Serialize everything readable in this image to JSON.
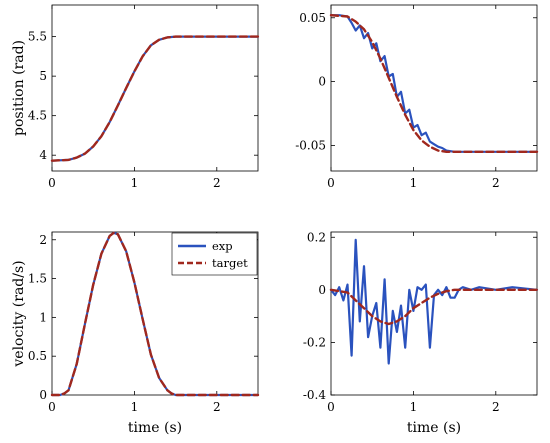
{
  "colors": {
    "exp": "#2a52be",
    "target": "#a0281e",
    "axis": "#000000",
    "background": "#ffffff"
  },
  "legend": {
    "placement": "top-right",
    "panel": 2
  },
  "chart_data": [
    {
      "type": "line",
      "panel": "top-left",
      "xlabel": "",
      "ylabel": "position (rad)",
      "xlim": [
        0,
        2.5
      ],
      "ylim": [
        3.8,
        5.9
      ],
      "xticks": [
        "0",
        "1",
        "2"
      ],
      "yticks": [
        "4",
        "4.5",
        "5",
        "5.5"
      ],
      "grid": false,
      "series": [
        {
          "name": "exp",
          "style": "solid",
          "x": [
            0,
            0.2,
            0.3,
            0.4,
            0.5,
            0.6,
            0.7,
            0.8,
            0.9,
            1.0,
            1.1,
            1.2,
            1.3,
            1.4,
            1.5,
            1.7,
            2.0,
            2.5
          ],
          "y": [
            3.93,
            3.94,
            3.97,
            4.02,
            4.11,
            4.24,
            4.42,
            4.63,
            4.85,
            5.06,
            5.25,
            5.39,
            5.46,
            5.49,
            5.5,
            5.5,
            5.5,
            5.5
          ]
        },
        {
          "name": "target",
          "style": "dashed",
          "x": [
            0,
            0.2,
            0.3,
            0.4,
            0.5,
            0.6,
            0.7,
            0.8,
            0.9,
            1.0,
            1.1,
            1.2,
            1.3,
            1.4,
            1.5,
            1.7,
            2.0,
            2.5
          ],
          "y": [
            3.93,
            3.94,
            3.97,
            4.02,
            4.11,
            4.24,
            4.42,
            4.63,
            4.85,
            5.06,
            5.25,
            5.39,
            5.46,
            5.49,
            5.5,
            5.5,
            5.5,
            5.5
          ]
        }
      ]
    },
    {
      "type": "line",
      "panel": "top-right",
      "xlabel": "",
      "ylabel": "",
      "xlim": [
        0,
        2.5
      ],
      "ylim": [
        -0.07,
        0.06
      ],
      "xticks": [
        "0",
        "1",
        "2"
      ],
      "yticks": [
        "-0.05",
        "0",
        "0.05"
      ],
      "grid": false,
      "series": [
        {
          "name": "exp",
          "style": "solid",
          "x": [
            0,
            0.1,
            0.2,
            0.25,
            0.3,
            0.35,
            0.4,
            0.45,
            0.5,
            0.55,
            0.6,
            0.65,
            0.7,
            0.75,
            0.8,
            0.85,
            0.9,
            0.95,
            1.0,
            1.05,
            1.1,
            1.15,
            1.2,
            1.25,
            1.3,
            1.35,
            1.4,
            1.5,
            1.7,
            2.0,
            2.5
          ],
          "y": [
            0.052,
            0.052,
            0.051,
            0.046,
            0.04,
            0.044,
            0.034,
            0.038,
            0.026,
            0.03,
            0.016,
            0.02,
            0.004,
            0.006,
            -0.012,
            -0.008,
            -0.025,
            -0.022,
            -0.036,
            -0.034,
            -0.042,
            -0.04,
            -0.047,
            -0.049,
            -0.051,
            -0.052,
            -0.054,
            -0.055,
            -0.055,
            -0.055,
            -0.055
          ]
        },
        {
          "name": "target",
          "style": "dashed",
          "x": [
            0,
            0.2,
            0.3,
            0.4,
            0.5,
            0.6,
            0.7,
            0.8,
            0.9,
            1.0,
            1.1,
            1.2,
            1.3,
            1.4,
            1.5,
            1.7,
            2.0,
            2.5
          ],
          "y": [
            0.052,
            0.051,
            0.047,
            0.041,
            0.031,
            0.018,
            0.003,
            -0.012,
            -0.026,
            -0.038,
            -0.046,
            -0.051,
            -0.054,
            -0.055,
            -0.055,
            -0.055,
            -0.055,
            -0.055
          ]
        }
      ]
    },
    {
      "type": "line",
      "panel": "bottom-left",
      "xlabel": "time (s)",
      "ylabel": "velocity (rad/s)",
      "xlim": [
        0,
        2.5
      ],
      "ylim": [
        0,
        2.1
      ],
      "xticks": [
        "0",
        "1",
        "2"
      ],
      "yticks": [
        "0",
        "0.5",
        "1",
        "1.5",
        "2"
      ],
      "grid": false,
      "series": [
        {
          "name": "exp",
          "style": "solid",
          "x": [
            0,
            0.1,
            0.15,
            0.2,
            0.3,
            0.4,
            0.5,
            0.6,
            0.7,
            0.75,
            0.8,
            0.9,
            1.0,
            1.1,
            1.2,
            1.3,
            1.4,
            1.45,
            1.5,
            1.6,
            2.0,
            2.5
          ],
          "y": [
            0,
            0,
            0.02,
            0.06,
            0.4,
            0.92,
            1.42,
            1.82,
            2.05,
            2.09,
            2.07,
            1.85,
            1.45,
            0.98,
            0.52,
            0.22,
            0.06,
            0.02,
            0,
            0,
            0,
            0
          ]
        },
        {
          "name": "target",
          "style": "dashed",
          "x": [
            0,
            0.1,
            0.15,
            0.2,
            0.3,
            0.4,
            0.5,
            0.6,
            0.7,
            0.75,
            0.8,
            0.9,
            1.0,
            1.1,
            1.2,
            1.3,
            1.4,
            1.45,
            1.5,
            1.6,
            2.0,
            2.5
          ],
          "y": [
            0,
            0,
            0.02,
            0.06,
            0.4,
            0.92,
            1.42,
            1.82,
            2.05,
            2.09,
            2.07,
            1.85,
            1.45,
            0.98,
            0.52,
            0.22,
            0.06,
            0.02,
            0,
            0,
            0,
            0
          ]
        }
      ]
    },
    {
      "type": "line",
      "panel": "bottom-right",
      "xlabel": "time (s)",
      "ylabel": "",
      "xlim": [
        0,
        2.5
      ],
      "ylim": [
        -0.4,
        0.22
      ],
      "xticks": [
        "0",
        "1",
        "2"
      ],
      "yticks": [
        "-0.4",
        "-0.2",
        "0",
        "0.2"
      ],
      "grid": false,
      "series": [
        {
          "name": "exp",
          "style": "solid",
          "x": [
            0,
            0.05,
            0.1,
            0.15,
            0.2,
            0.25,
            0.3,
            0.35,
            0.4,
            0.45,
            0.5,
            0.55,
            0.6,
            0.65,
            0.7,
            0.75,
            0.8,
            0.85,
            0.9,
            0.95,
            1.0,
            1.05,
            1.1,
            1.15,
            1.2,
            1.25,
            1.3,
            1.35,
            1.4,
            1.45,
            1.5,
            1.55,
            1.6,
            1.7,
            1.8,
            2.0,
            2.2,
            2.5
          ],
          "y": [
            0,
            -0.02,
            0.01,
            -0.04,
            0.02,
            -0.25,
            0.19,
            -0.12,
            0.09,
            -0.18,
            -0.1,
            -0.05,
            -0.22,
            0.04,
            -0.28,
            -0.08,
            -0.16,
            -0.06,
            -0.22,
            0.0,
            -0.08,
            0.01,
            0.0,
            0.02,
            -0.22,
            -0.02,
            0.0,
            -0.02,
            0.01,
            -0.03,
            -0.03,
            0.0,
            0.01,
            0.0,
            0.01,
            0.0,
            0.01,
            0.0
          ]
        },
        {
          "name": "target",
          "style": "dashed",
          "x": [
            0,
            0.2,
            0.3,
            0.4,
            0.5,
            0.6,
            0.7,
            0.8,
            0.9,
            1.0,
            1.1,
            1.2,
            1.3,
            1.4,
            1.5,
            1.7,
            2.0,
            2.5
          ],
          "y": [
            0,
            -0.01,
            -0.04,
            -0.07,
            -0.1,
            -0.12,
            -0.13,
            -0.12,
            -0.1,
            -0.07,
            -0.05,
            -0.03,
            -0.015,
            -0.005,
            0,
            0,
            0,
            0
          ]
        }
      ]
    }
  ]
}
